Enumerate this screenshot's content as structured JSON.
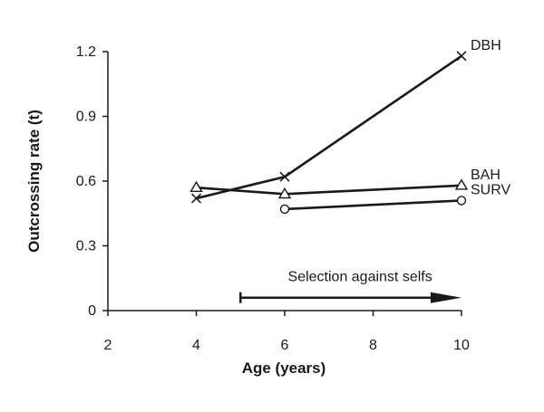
{
  "chart_data": {
    "type": "line",
    "xlabel": "Age (years)",
    "ylabel": "Outcrossing  rate (t)",
    "xlim": [
      2,
      10
    ],
    "ylim": [
      0,
      1.2
    ],
    "x_ticks": [
      2,
      4,
      6,
      8,
      10
    ],
    "y_ticks": [
      0,
      0.3,
      0.6,
      0.9,
      1.2
    ],
    "x_tick_labels": [
      "2",
      "4",
      "6",
      "8",
      "10"
    ],
    "y_tick_labels": [
      "0",
      "0.3",
      "0.6",
      "0.9",
      "1.2"
    ],
    "grid": false,
    "legend": "none",
    "series": [
      {
        "name": "DBH",
        "marker": "x",
        "color": "#1a1a1a",
        "x": [
          4,
          6,
          10
        ],
        "y": [
          0.52,
          0.62,
          1.18
        ]
      },
      {
        "name": "BAH",
        "marker": "triangle",
        "color": "#1a1a1a",
        "x": [
          4,
          6,
          10
        ],
        "y": [
          0.57,
          0.54,
          0.58
        ]
      },
      {
        "name": "SURV",
        "marker": "circle",
        "color": "#1a1a1a",
        "x": [
          6,
          10
        ],
        "y": [
          0.47,
          0.51
        ]
      }
    ],
    "annotation": {
      "text": "Selection against selfs",
      "x_start": 5,
      "x_end": 10,
      "y": 0.06
    }
  }
}
